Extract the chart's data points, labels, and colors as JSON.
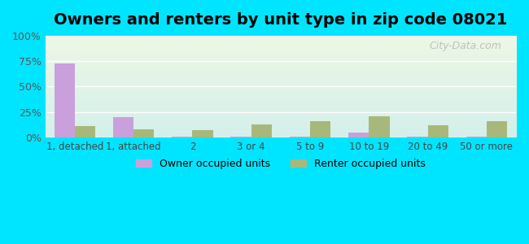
{
  "title": "Owners and renters by unit type in zip code 08021",
  "categories": [
    "1, detached",
    "1, attached",
    "2",
    "3 or 4",
    "5 to 9",
    "10 to 19",
    "20 to 49",
    "50 or more"
  ],
  "owner_values": [
    73,
    20,
    0.5,
    0.5,
    1.0,
    5.0,
    1.0,
    0.5
  ],
  "renter_values": [
    11,
    8,
    7,
    13,
    16,
    21,
    12,
    16
  ],
  "owner_color": "#c9a0dc",
  "renter_color": "#a8b87a",
  "bg_outer": "#00e5ff",
  "title_fontsize": 14,
  "ylabel_ticks": [
    "0%",
    "25%",
    "50%",
    "75%",
    "100%"
  ],
  "ylabel_values": [
    0,
    25,
    50,
    75,
    100
  ],
  "ylim": [
    0,
    100
  ],
  "bar_width": 0.35,
  "legend_owner": "Owner occupied units",
  "legend_renter": "Renter occupied units",
  "watermark": "City-Data.com"
}
